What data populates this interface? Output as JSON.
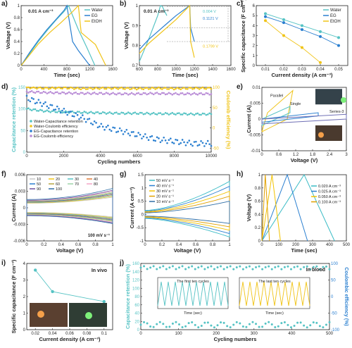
{
  "colors": {
    "water": "#56c3c4",
    "eg": "#2a7fd0",
    "etoh": "#f0c419",
    "purple": "#b98cd6",
    "axis": "#222222",
    "rate1": "#3bbcc6",
    "rate2": "#2a7fd0",
    "rate3": "#f2c200",
    "rate4": "#e0a000",
    "red": "#c0392b"
  },
  "chart_data": [
    {
      "panel": "a",
      "type": "line",
      "annotation": "0.01 A cm⁻³",
      "xlabel": "Time (sec)",
      "ylabel": "Voltage (V)",
      "xlim": [
        0,
        1600
      ],
      "ylim": [
        0,
        1.0
      ],
      "xticks": [
        0,
        400,
        800,
        1200,
        1600
      ],
      "yticks": [
        0.0,
        0.2,
        0.4,
        0.6,
        0.8,
        1.0
      ],
      "series": [
        {
          "name": "Water",
          "color": "#56c3c4",
          "x": [
            0,
            150,
            300,
            450,
            600,
            750,
            830,
            1000,
            1150,
            1290
          ],
          "y": [
            0,
            0.2,
            0.4,
            0.58,
            0.75,
            0.9,
            1.0,
            0.6,
            0.3,
            0
          ]
        },
        {
          "name": "EG",
          "color": "#2a7fd0",
          "x": [
            0,
            150,
            300,
            450,
            600,
            750,
            800,
            900,
            1000,
            1200
          ],
          "y": [
            0,
            0.22,
            0.42,
            0.6,
            0.76,
            0.92,
            1.0,
            0.4,
            0.25,
            0
          ]
        },
        {
          "name": "EtOH",
          "color": "#f0c419",
          "x": [
            0,
            150,
            300,
            500,
            700,
            900,
            1000,
            1050,
            1300,
            1480
          ],
          "y": [
            0,
            0.18,
            0.36,
            0.55,
            0.72,
            0.9,
            1.0,
            0.55,
            0.35,
            0
          ]
        }
      ]
    },
    {
      "panel": "b",
      "type": "line",
      "annotation": "0.01 A cm⁻³",
      "xlabel": "Time (sec)",
      "ylabel": "Voltage (V)",
      "xlim": [
        600,
        1600
      ],
      "ylim": [
        0.7,
        1.0
      ],
      "xticks": [
        600,
        800,
        1000,
        1200,
        1400,
        1600
      ],
      "yticks": [
        0.7,
        0.8,
        0.9,
        1.0
      ],
      "drops": [
        "0.004 V",
        "0.1121 V",
        "0.1799 V"
      ],
      "series": [
        {
          "name": "Water",
          "color": "#56c3c4",
          "x": [
            600,
            700,
            800,
            830,
            850,
            900
          ],
          "y": [
            0.72,
            0.83,
            0.95,
            1.0,
            0.996,
            0.95
          ]
        },
        {
          "name": "EG",
          "color": "#2a7fd0",
          "x": [
            600,
            700,
            800,
            900,
            1000,
            1150,
            1160,
            1200
          ],
          "y": [
            0.78,
            0.83,
            0.87,
            0.91,
            0.95,
            1.0,
            0.888,
            0.82
          ]
        },
        {
          "name": "EtOH",
          "color": "#f0c419",
          "x": [
            600,
            700,
            800,
            900,
            1000,
            1150,
            1160,
            1200
          ],
          "y": [
            0.76,
            0.81,
            0.85,
            0.89,
            0.93,
            1.0,
            0.82,
            0.74
          ]
        }
      ]
    },
    {
      "panel": "c",
      "type": "line",
      "xlabel": "Current density (A cm⁻³)",
      "ylabel": "Specific capacitance (F cm⁻³)",
      "xlim": [
        0.005,
        0.055
      ],
      "ylim": [
        0,
        6
      ],
      "xticks": [
        0.01,
        0.02,
        0.03,
        0.04,
        0.05
      ],
      "yticks": [
        0,
        1,
        2,
        3,
        4,
        5,
        6
      ],
      "series": [
        {
          "name": "Water",
          "color": "#56c3c4",
          "x": [
            0.01,
            0.02,
            0.03,
            0.04,
            0.05
          ],
          "y": [
            5.2,
            4.6,
            4.0,
            3.4,
            2.8
          ]
        },
        {
          "name": "EG",
          "color": "#2a7fd0",
          "x": [
            0.01,
            0.02,
            0.03,
            0.04,
            0.05
          ],
          "y": [
            4.9,
            4.3,
            3.6,
            2.9,
            2.0
          ]
        },
        {
          "name": "EtOH",
          "color": "#f0c419",
          "x": [
            0.01,
            0.02,
            0.03,
            0.04
          ],
          "y": [
            4.5,
            3.0,
            1.8,
            0.3
          ]
        }
      ]
    },
    {
      "panel": "d",
      "type": "scatter",
      "xlabel": "Cycling numbers",
      "ylabel": "Capacitance retention (%)",
      "y2label": "Coulomb efficiency (%)",
      "xlim": [
        0,
        10000
      ],
      "ylim": [
        0,
        150
      ],
      "y2lim": [
        -60,
        100
      ],
      "xticks": [
        0,
        2000,
        4000,
        6000,
        8000,
        10000
      ],
      "yticks": [
        0,
        50,
        100,
        150
      ],
      "y2ticks": [
        -50,
        0,
        50,
        100
      ],
      "series": [
        {
          "name": "Water-Capacitance retention",
          "color": "#56c3c4",
          "level": [
            100,
            95,
            93,
            92,
            91,
            90,
            90,
            89,
            89,
            88,
            88
          ]
        },
        {
          "name": "Water-Coulomb efficiency",
          "color": "#f0c419",
          "level": [
            150,
            148,
            149,
            147,
            148,
            148,
            147,
            148,
            147,
            148,
            148
          ]
        },
        {
          "name": "EG-Capacitance retention",
          "color": "#2a7fd0",
          "level": [
            125,
            110,
            95,
            80,
            60,
            50,
            40,
            30,
            25,
            20,
            20
          ]
        },
        {
          "name": "EG-Coulomb efficiency",
          "color": "#b98cd6",
          "level": [
            140,
            138,
            137,
            136,
            136,
            135,
            135,
            136,
            135,
            135,
            135
          ]
        }
      ]
    },
    {
      "panel": "e",
      "type": "line",
      "xlabel": "Voltage (V)",
      "ylabel": "Current (A)",
      "xlim": [
        0,
        3.0
      ],
      "ylim": [
        -0.01,
        0.01
      ],
      "xticks": [
        0.0,
        0.6,
        1.2,
        1.8,
        2.4,
        3.0
      ],
      "yticks": [
        -0.01,
        -0.005,
        0.0,
        0.005,
        0.01
      ],
      "labels": [
        "Parallel",
        "Single",
        "Series-2",
        "Series-3"
      ]
    },
    {
      "panel": "f",
      "type": "line",
      "xlabel": "Voltage (V)",
      "ylabel": "Current (A)",
      "xlim": [
        0,
        1.0
      ],
      "ylim": [
        -0.006,
        0.006
      ],
      "xticks": [
        0.0,
        0.2,
        0.4,
        0.6,
        0.8,
        1.0
      ],
      "yticks": [
        -0.006,
        -0.003,
        0.0,
        0.003,
        0.006
      ],
      "annotation": "100 mV s⁻¹",
      "legend": [
        "10",
        "20",
        "30",
        "40",
        "50",
        "60",
        "70",
        "80",
        "90",
        "100"
      ]
    },
    {
      "panel": "g",
      "type": "line",
      "xlabel": "Voltage (V)",
      "ylabel": "Current (A cm⁻³)",
      "xlim": [
        0,
        1.0
      ],
      "ylim": [
        -1.0,
        1.5
      ],
      "xticks": [
        0.0,
        0.2,
        0.4,
        0.6,
        0.8,
        1.0
      ],
      "yticks": [
        -1.0,
        -0.5,
        0.0,
        0.5,
        1.0,
        1.5
      ],
      "legend": [
        "50 mV s⁻¹",
        "40 mV s⁻¹",
        "30 mV s⁻¹",
        "20 mV s⁻¹",
        "10 mV s⁻¹"
      ]
    },
    {
      "panel": "h",
      "type": "line",
      "xlabel": "Time (sec)",
      "ylabel": "Voltage (V)",
      "xlim": [
        0,
        500
      ],
      "ylim": [
        0,
        1.0
      ],
      "xticks": [
        0,
        100,
        200,
        300,
        400,
        500
      ],
      "yticks": [
        0.0,
        0.2,
        0.4,
        0.6,
        0.8,
        1.0
      ],
      "series": [
        {
          "name": "0.020 A cm⁻³",
          "color": "#3bbcc6",
          "peak": 250,
          "end": 430
        },
        {
          "name": "0.025 A cm⁻³",
          "color": "#2a7fd0",
          "peak": 150,
          "end": 270
        },
        {
          "name": "0.050 A cm⁻³",
          "color": "#f2c200",
          "peak": 60,
          "end": 110
        },
        {
          "name": "0.100 A cm⁻³",
          "color": "#e0a000",
          "peak": 20,
          "end": 45
        }
      ]
    },
    {
      "panel": "i",
      "type": "line",
      "annotation": "In vivo",
      "xlabel": "Current density (A cm⁻³)",
      "ylabel": "Specific capacitance (F cm⁻³)",
      "xlim": [
        0.01,
        0.11
      ],
      "ylim": [
        0,
        4
      ],
      "xticks": [
        0.02,
        0.04,
        0.06,
        0.08,
        0.1
      ],
      "yticks": [
        0,
        1,
        2,
        3,
        4
      ],
      "series": [
        {
          "name": "In vivo",
          "color": "#56c3c4",
          "x": [
            0.02,
            0.04,
            0.1
          ],
          "y": [
            3.6,
            2.3,
            1.7
          ]
        }
      ]
    },
    {
      "panel": "j",
      "type": "scatter",
      "annotation": "In blood",
      "xlabel": "Cycling numbers",
      "ylabel": "Capacitance retention (%)",
      "y2label": "Coulombic efficiency (%)",
      "xlim": [
        0,
        500
      ],
      "ylim": [
        0,
        160
      ],
      "y2lim": [
        -100,
        100
      ],
      "xticks": [
        0,
        100,
        200,
        300,
        400,
        500
      ],
      "yticks": [
        0,
        20,
        40,
        60,
        80,
        100,
        120,
        140,
        160
      ],
      "y2ticks": [
        -100,
        -50,
        0,
        50,
        100
      ],
      "inset_left": {
        "legend": "The first ten cycles",
        "xlabel": "Time (sec)",
        "ylabel": "Voltage (V)",
        "xticks": [
          0,
          100,
          200,
          300
        ],
        "yticks": [
          0.0,
          0.5,
          1.0
        ]
      },
      "inset_right": {
        "legend": "The last ten cycles",
        "xlabel": "Time (sec)",
        "xticks": [
          10000,
          15000
        ]
      }
    }
  ]
}
